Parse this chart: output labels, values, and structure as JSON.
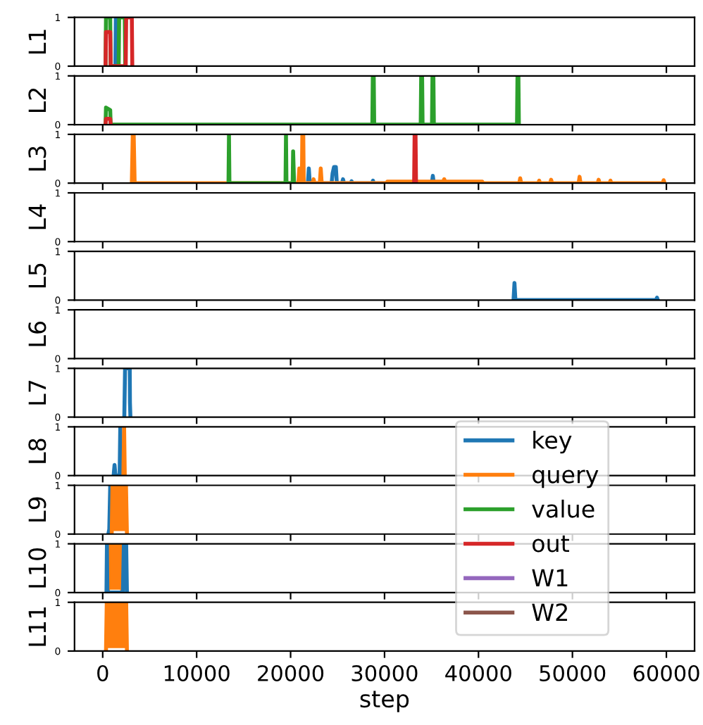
{
  "chart_data": [
    {
      "type": "line",
      "ylabel": "L1",
      "xlim": [
        -3000,
        63000
      ],
      "xticks": [
        0,
        10000,
        20000,
        30000,
        40000,
        50000,
        60000
      ],
      "ylim": [
        0,
        1
      ],
      "yticks": [
        0,
        1
      ],
      "tick_labels": "y",
      "series": [
        {
          "color": "#1f77b4",
          "x": [
            1350,
            1400,
            1500,
            1550
          ],
          "values": [
            0,
            1,
            1,
            0
          ]
        },
        {
          "color": "#2ca02c",
          "x": [
            300,
            350,
            800,
            850,
            1700,
            1750,
            2350,
            2400
          ],
          "values": [
            0,
            1,
            1,
            0,
            0,
            1,
            1,
            0
          ]
        },
        {
          "color": "#d62728",
          "x": [
            300,
            350,
            800,
            850,
            2450,
            2500,
            3100,
            3150
          ],
          "values": [
            0,
            0.7,
            0.7,
            0,
            0,
            1,
            1,
            0
          ]
        }
      ]
    },
    {
      "type": "line",
      "ylabel": "L2",
      "xlim": [
        -3000,
        63000
      ],
      "xticks": [
        0,
        10000,
        20000,
        30000,
        40000,
        50000,
        60000
      ],
      "ylim": [
        0,
        1
      ],
      "yticks": [
        0,
        1
      ],
      "tick_labels": "y",
      "series": [
        {
          "color": "#2ca02c",
          "x": [
            300,
            350,
            800,
            850,
            28700,
            28750,
            28850,
            28900,
            33850,
            33900,
            34000,
            34050,
            35050,
            35100,
            35200,
            35250,
            44100,
            44150,
            44250,
            44300
          ],
          "values": [
            0,
            0.35,
            0.3,
            0,
            0,
            1,
            1,
            0,
            0,
            1,
            1,
            0,
            0,
            1,
            1,
            0,
            0,
            1,
            1,
            0
          ]
        },
        {
          "color": "#d62728",
          "x": [
            300,
            350,
            800,
            850
          ],
          "values": [
            0,
            0.12,
            0.12,
            0
          ]
        }
      ]
    },
    {
      "type": "line",
      "ylabel": "L3",
      "xlim": [
        -3000,
        63000
      ],
      "xticks": [
        0,
        10000,
        20000,
        30000,
        40000,
        50000,
        60000
      ],
      "ylim": [
        0,
        1
      ],
      "yticks": [
        0,
        1
      ],
      "tick_labels": "y",
      "series": [
        {
          "color": "#1f77b4",
          "x": [
            21840,
            21940,
            22040,
            24370,
            24470,
            24620,
            24820,
            24920,
            25480,
            25580,
            25680,
            26390,
            26490,
            26590,
            28670,
            28770,
            28870,
            35040,
            35140,
            35240
          ],
          "values": [
            0,
            0.3,
            0,
            0,
            0.2,
            0.33,
            0.33,
            0,
            0,
            0.08,
            0,
            0,
            0.04,
            0,
            0,
            0.05,
            0,
            0,
            0.15,
            0
          ]
        },
        {
          "color": "#ff7f0e",
          "x": [
            3100,
            3200,
            3300,
            3400,
            20830,
            20930,
            21030,
            21200,
            21250,
            21350,
            21400,
            22350,
            22450,
            22550,
            23110,
            23210,
            23310,
            30200,
            30300,
            36250,
            36350,
            36450,
            40400,
            40500,
            44340,
            44440,
            44540,
            46360,
            46460,
            46560,
            47630,
            47730,
            47830,
            50660,
            50760,
            50860,
            52690,
            52790,
            52890,
            53950,
            54050,
            54150,
            59610,
            59710,
            59810
          ],
          "values": [
            0,
            1,
            1,
            0,
            0,
            0.3,
            0,
            0,
            1,
            1,
            0,
            0,
            0.08,
            0,
            0,
            0.3,
            0,
            0,
            0.03,
            0.03,
            0.08,
            0.03,
            0.03,
            0,
            0,
            0.1,
            0,
            0,
            0.05,
            0,
            0,
            0.07,
            0,
            0,
            0.13,
            0,
            0,
            0.07,
            0,
            0,
            0.05,
            0,
            0,
            0.06,
            0
          ]
        },
        {
          "color": "#2ca02c",
          "x": [
            13390,
            13440,
            13490,
            19460,
            19510,
            19560,
            20220,
            20270,
            20370
          ],
          "values": [
            0,
            1,
            0,
            0,
            1,
            0,
            0,
            0.65,
            0
          ]
        },
        {
          "color": "#d62728",
          "x": [
            33150,
            33200,
            33300,
            33350
          ],
          "values": [
            0,
            1,
            1,
            0
          ]
        }
      ]
    },
    {
      "type": "line",
      "ylabel": "L4",
      "xlim": [
        -3000,
        63000
      ],
      "xticks": [
        0,
        10000,
        20000,
        30000,
        40000,
        50000,
        60000
      ],
      "ylim": [
        0,
        1
      ],
      "yticks": [
        0,
        1
      ],
      "tick_labels": "y"
    },
    {
      "type": "line",
      "ylabel": "L5",
      "xlim": [
        -3000,
        63000
      ],
      "xticks": [
        0,
        10000,
        20000,
        30000,
        40000,
        50000,
        60000
      ],
      "ylim": [
        0,
        1
      ],
      "yticks": [
        0,
        1
      ],
      "tick_labels": "y",
      "series": [
        {
          "color": "#1f77b4",
          "x": [
            43730,
            43830,
            43930,
            58900,
            59000,
            59100
          ],
          "values": [
            0,
            0.35,
            0,
            0,
            0.05,
            0
          ]
        }
      ]
    },
    {
      "type": "line",
      "ylabel": "L6",
      "xlim": [
        -3000,
        63000
      ],
      "xticks": [
        0,
        10000,
        20000,
        30000,
        40000,
        50000,
        60000
      ],
      "ylim": [
        0,
        1
      ],
      "yticks": [
        0,
        1
      ],
      "tick_labels": "y"
    },
    {
      "type": "line",
      "ylabel": "L7",
      "xlim": [
        -3000,
        63000
      ],
      "xticks": [
        0,
        10000,
        20000,
        30000,
        40000,
        50000,
        60000
      ],
      "ylim": [
        0,
        1
      ],
      "yticks": [
        0,
        1
      ],
      "tick_labels": "y",
      "series": [
        {
          "color": "#1f77b4",
          "x": [
            2300,
            2380,
            2880,
            2900,
            2950
          ],
          "values": [
            0,
            1,
            1,
            0.3,
            0
          ]
        }
      ]
    },
    {
      "type": "line",
      "ylabel": "L8",
      "xlim": [
        -3000,
        63000
      ],
      "xticks": [
        0,
        10000,
        20000,
        30000,
        40000,
        50000,
        60000
      ],
      "ylim": [
        0,
        1
      ],
      "yticks": [
        0,
        1
      ],
      "tick_labels": "y",
      "series": [
        {
          "color": "#1f77b4",
          "x": [
            1160,
            1260,
            1360,
            1800,
            1870,
            1950
          ],
          "values": [
            0,
            0.22,
            0,
            0,
            1,
            0
          ]
        },
        {
          "color": "#ff7f0e",
          "x": [
            2200,
            2280,
            2350
          ],
          "values": [
            0,
            1,
            0
          ]
        }
      ]
    },
    {
      "type": "line",
      "ylabel": "L9",
      "xlim": [
        -3000,
        63000
      ],
      "xticks": [
        0,
        10000,
        20000,
        30000,
        40000,
        50000,
        60000
      ],
      "ylim": [
        0,
        1
      ],
      "yticks": [
        0,
        1
      ],
      "tick_labels": "y",
      "legend": "center right",
      "series": [
        {
          "name": "key",
          "color": "#1f77b4",
          "x": [
            600,
            700,
            800,
            900
          ],
          "values": [
            0,
            0.1,
            1,
            0
          ]
        },
        {
          "name": "query",
          "color": "#ff7f0e",
          "x": [
            960,
            1040,
            1120,
            1200,
            1280,
            1360,
            1440,
            1520,
            1600,
            1680,
            1760,
            1840,
            1920,
            2000,
            2080,
            2160,
            2240,
            2320,
            2400,
            2480,
            2580
          ],
          "values": [
            0,
            1,
            0.1,
            1,
            0.1,
            1,
            0.1,
            1,
            0.1,
            1,
            0.1,
            1,
            0.1,
            1,
            0.1,
            1,
            0.1,
            1,
            0.1,
            1,
            0
          ]
        },
        {
          "name": "value",
          "color": "#2ca02c"
        },
        {
          "name": "out",
          "color": "#d62728"
        },
        {
          "name": "W1",
          "color": "#9467bd"
        },
        {
          "name": "W2",
          "color": "#8c564b"
        }
      ]
    },
    {
      "type": "line",
      "ylabel": "L10",
      "xlim": [
        -3000,
        63000
      ],
      "xticks": [
        0,
        10000,
        20000,
        30000,
        40000,
        50000,
        60000
      ],
      "ylim": [
        0,
        1
      ],
      "yticks": [
        0,
        1
      ],
      "tick_labels": "y",
      "series": [
        {
          "color": "#ff7f0e",
          "x": [
            560,
            640,
            720,
            800,
            880,
            960,
            1040,
            1120,
            1200,
            1280,
            1360,
            1440,
            1520,
            1600,
            1680,
            1760,
            1840,
            1920,
            2000,
            2070
          ],
          "values": [
            0,
            1,
            0.1,
            1,
            0.1,
            1,
            0.1,
            1,
            0.1,
            1,
            0.1,
            1,
            0.1,
            1,
            0.1,
            1,
            0.1,
            1,
            1,
            0
          ]
        },
        {
          "color": "#1f77b4",
          "x": [
            400,
            450,
            500,
            2150,
            2250,
            2500,
            2580
          ],
          "values": [
            0,
            1,
            0,
            0,
            1,
            1,
            0
          ]
        }
      ]
    },
    {
      "type": "line",
      "ylabel": "L11",
      "xlabel": "step",
      "xlim": [
        -3000,
        63000
      ],
      "xticks": [
        0,
        10000,
        20000,
        30000,
        40000,
        50000,
        60000
      ],
      "ylim": [
        0,
        1
      ],
      "yticks": [
        0,
        1
      ],
      "series": [
        {
          "color": "#ff7f0e",
          "x": [
            350,
            430,
            510,
            590,
            670,
            750,
            830,
            910,
            990,
            1070,
            1150,
            1230,
            1310,
            1390,
            1470,
            1550,
            1630,
            1710,
            1790,
            1870,
            1950,
            2030,
            2110,
            2190,
            2270,
            2350,
            2430,
            2500,
            2580
          ],
          "values": [
            0,
            1,
            0.1,
            1,
            0.1,
            1,
            0.1,
            1,
            0.1,
            1,
            0.1,
            1,
            0.1,
            1,
            0.1,
            1,
            0.1,
            1,
            0.1,
            1,
            0.1,
            1,
            0.1,
            1,
            0.1,
            1,
            0.1,
            1,
            0
          ]
        }
      ]
    }
  ]
}
